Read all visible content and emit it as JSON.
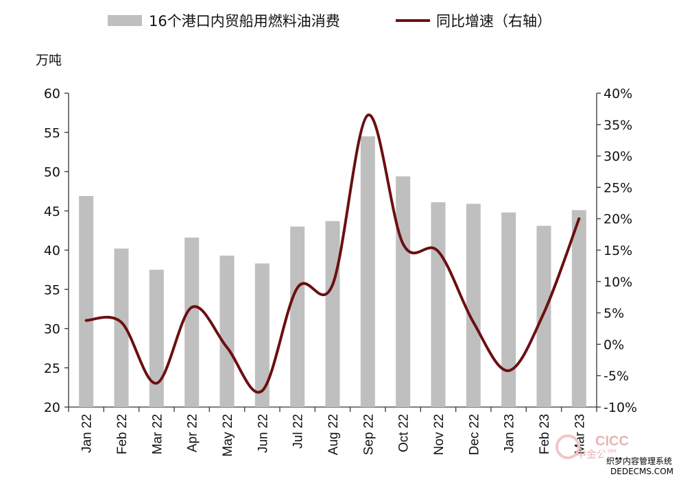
{
  "chart_data": {
    "type": "bar",
    "categories": [
      "Jan 22",
      "Feb 22",
      "Mar 22",
      "Apr 22",
      "May 22",
      "Jun 22",
      "Jul 22",
      "Aug 22",
      "Sep 22",
      "Oct 22",
      "Nov 22",
      "Dec 22",
      "Jan 23",
      "Feb 23",
      "Mar 23"
    ],
    "series": [
      {
        "name": "16个港口内贸船用燃料油消费",
        "type": "bar",
        "axis": "left",
        "color": "#bfbfbf",
        "values": [
          46.9,
          40.2,
          37.5,
          41.6,
          39.3,
          38.3,
          43.0,
          43.7,
          54.5,
          49.4,
          46.1,
          45.9,
          44.8,
          43.1,
          45.1
        ]
      },
      {
        "name": "同比增速（右轴）",
        "type": "line",
        "axis": "right",
        "color": "#6b0f12",
        "values": [
          3.8,
          3.5,
          -6.2,
          5.9,
          -0.5,
          -7.4,
          9.0,
          9.5,
          36.5,
          16.0,
          14.8,
          3.5,
          -4.2,
          5.0,
          20.0
        ]
      }
    ],
    "left_axis": {
      "label": "万吨",
      "ylim": [
        20,
        60
      ],
      "ticks": [
        "20",
        "25",
        "30",
        "35",
        "40",
        "45",
        "50",
        "55",
        "60"
      ]
    },
    "right_axis": {
      "ylim": [
        -10,
        40
      ],
      "ticks": [
        "-10%",
        "-5%",
        "0%",
        "5%",
        "10%",
        "15%",
        "20%",
        "25%",
        "30%",
        "35%",
        "40%"
      ]
    },
    "legend_position": "top"
  },
  "watermark": {
    "brand": "CICC",
    "brand_cn": "中金公司",
    "site_cn": "织梦内容管理系统",
    "site_url": "DEDECMS.COM"
  }
}
